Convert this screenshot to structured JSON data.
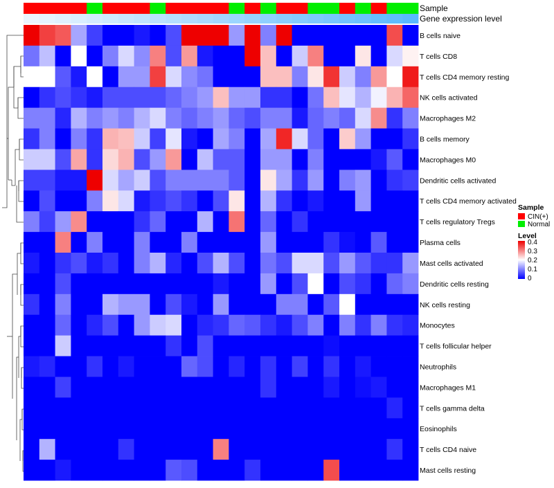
{
  "chart_data": {
    "type": "heatmap",
    "annotation_titles": {
      "sample": "Sample",
      "expression": "Gene expression level"
    },
    "sample_groups": [
      "CIN(+)",
      "CIN(+)",
      "CIN(+)",
      "CIN(+)",
      "Normal",
      "CIN(+)",
      "CIN(+)",
      "CIN(+)",
      "Normal",
      "CIN(+)",
      "CIN(+)",
      "CIN(+)",
      "CIN(+)",
      "Normal",
      "CIN(+)",
      "Normal",
      "CIN(+)",
      "CIN(+)",
      "Normal",
      "Normal",
      "CIN(+)",
      "Normal",
      "CIN(+)",
      "Normal",
      "Normal"
    ],
    "rows": [
      "B cells naive",
      "T cells CD8",
      "T cells CD4 memory resting",
      "NK cells activated",
      "Macrophages M2",
      "B cells memory",
      "Macrophages M0",
      "Dendritic cells activated",
      "T cells CD4 memory activated",
      "T cells regulatory  Tregs",
      "Plasma cells",
      "Mast cells activated",
      "Dendritic cells resting",
      "NK cells resting",
      "Monocytes",
      "T cells follicular helper",
      "Neutrophils",
      "Macrophages M1",
      "T cells gamma delta",
      "Eosinophils",
      "T cells CD4 naive",
      "Mast cells resting"
    ],
    "values": [
      [
        0.4,
        0.35,
        0.33,
        0.13,
        0.05,
        0,
        0,
        0.02,
        0,
        0.06,
        0.4,
        0.4,
        0.4,
        0.12,
        0.4,
        0.1,
        0.4,
        0,
        0,
        0,
        0,
        0,
        0,
        0.34,
        0
      ],
      [
        0.09,
        0.15,
        0,
        0.2,
        0,
        0.1,
        0.17,
        0.11,
        0.3,
        0.06,
        0.28,
        0.02,
        0,
        0,
        0.4,
        0.25,
        0,
        0.16,
        0.3,
        0,
        0,
        0.22,
        0,
        0.17,
        0.21
      ],
      [
        0.2,
        0.2,
        0.07,
        0.02,
        0.2,
        0,
        0.12,
        0.12,
        0.35,
        0.17,
        0.11,
        0.09,
        0,
        0,
        0,
        0.25,
        0.25,
        0.1,
        0.22,
        0.36,
        0.16,
        0.1,
        0.28,
        0.2,
        0.38
      ],
      [
        0,
        0.04,
        0.06,
        0.04,
        0.02,
        0.06,
        0.06,
        0.06,
        0.06,
        0.08,
        0.1,
        0.12,
        0.25,
        0.12,
        0.12,
        0.04,
        0.04,
        0,
        0.09,
        0.25,
        0.18,
        0.14,
        0.19,
        0.26,
        0.32
      ],
      [
        0.1,
        0.1,
        0.03,
        0.14,
        0.1,
        0.12,
        0.1,
        0.14,
        0.17,
        0.1,
        0.08,
        0.1,
        0.12,
        0.08,
        0.06,
        0.1,
        0.1,
        0.02,
        0.08,
        0.1,
        0.08,
        0.17,
        0.29,
        0.04,
        0.1
      ],
      [
        0.04,
        0.1,
        0,
        0.1,
        0.04,
        0.26,
        0.25,
        0.16,
        0.05,
        0.18,
        0.02,
        0,
        0.13,
        0.1,
        0,
        0.13,
        0.37,
        0.17,
        0.08,
        0,
        0.24,
        0.12,
        0,
        0,
        0.04
      ],
      [
        0.16,
        0.16,
        0.06,
        0.27,
        0.04,
        0.23,
        0.26,
        0.06,
        0.12,
        0.28,
        0,
        0.15,
        0.07,
        0.07,
        0,
        0.12,
        0.12,
        0,
        0.1,
        0,
        0,
        0,
        0.02,
        0.07,
        0
      ],
      [
        0.05,
        0.05,
        0.02,
        0.02,
        0.4,
        0.17,
        0.13,
        0.16,
        0.06,
        0.1,
        0.1,
        0.1,
        0.1,
        0.07,
        0,
        0.22,
        0.13,
        0.04,
        0.12,
        0,
        0.1,
        0.12,
        0,
        0.04,
        0.05
      ],
      [
        0,
        0.06,
        0,
        0,
        0.1,
        0.22,
        0.17,
        0.02,
        0.04,
        0.06,
        0.04,
        0,
        0.06,
        0.22,
        0,
        0.14,
        0.04,
        0,
        0.02,
        0,
        0,
        0.12,
        0,
        0,
        0
      ],
      [
        0.1,
        0.05,
        0.12,
        0.29,
        0,
        0,
        0,
        0.04,
        0.08,
        0,
        0,
        0.14,
        0,
        0.31,
        0,
        0.08,
        0,
        0.04,
        0,
        0,
        0,
        0,
        0,
        0,
        0
      ],
      [
        0,
        0,
        0.3,
        0,
        0.1,
        0,
        0,
        0.1,
        0,
        0,
        0.1,
        0,
        0,
        0,
        0,
        0.12,
        0,
        0,
        0,
        0.04,
        0.01,
        0,
        0.07,
        0,
        0
      ],
      [
        0.02,
        0,
        0.04,
        0.06,
        0.02,
        0.04,
        0,
        0.1,
        0.14,
        0.03,
        0,
        0.06,
        0.14,
        0.06,
        0,
        0.09,
        0.06,
        0.17,
        0.17,
        0.06,
        0.12,
        0.07,
        0.04,
        0.04,
        0.12
      ],
      [
        0,
        0,
        0.06,
        0,
        0,
        0,
        0,
        0,
        0,
        0,
        0,
        0,
        0.02,
        0,
        0,
        0.12,
        0,
        0.06,
        0.2,
        0,
        0.06,
        0.04,
        0,
        0.08,
        0.1
      ],
      [
        0.04,
        0,
        0.1,
        0,
        0,
        0.14,
        0.12,
        0.12,
        0,
        0.06,
        0.02,
        0,
        0.12,
        0,
        0,
        0,
        0.1,
        0.1,
        0,
        0.07,
        0.2,
        0,
        0,
        0,
        0
      ],
      [
        0,
        0,
        0.08,
        0,
        0.03,
        0.06,
        0,
        0.12,
        0.16,
        0.17,
        0,
        0.03,
        0.04,
        0.08,
        0.07,
        0.04,
        0.02,
        0.06,
        0.1,
        0,
        0.1,
        0.04,
        0.1,
        0.04,
        0.03
      ],
      [
        0,
        0,
        0.16,
        0,
        0,
        0,
        0,
        0,
        0,
        0.04,
        0,
        0.06,
        0,
        0,
        0,
        0,
        0,
        0,
        0,
        0.01,
        0,
        0,
        0,
        0,
        0
      ],
      [
        0.02,
        0.03,
        0,
        0,
        0.04,
        0,
        0.02,
        0,
        0,
        0,
        0.08,
        0.06,
        0,
        0.03,
        0,
        0.04,
        0,
        0.05,
        0,
        0.04,
        0,
        0.02,
        0,
        0,
        0
      ],
      [
        0,
        0,
        0.05,
        0,
        0,
        0,
        0,
        0,
        0,
        0,
        0,
        0,
        0,
        0,
        0,
        0.04,
        0,
        0,
        0,
        0.02,
        0,
        0.01,
        0.02,
        0,
        0
      ],
      [
        0,
        0,
        0,
        0,
        0,
        0,
        0,
        0,
        0,
        0,
        0,
        0,
        0,
        0,
        0,
        0,
        0,
        0,
        0,
        0,
        0,
        0,
        0,
        0.03,
        0
      ],
      [
        0,
        0,
        0,
        0,
        0,
        0,
        0,
        0,
        0,
        0,
        0,
        0,
        0,
        0,
        0,
        0,
        0,
        0,
        0,
        0,
        0,
        0,
        0,
        0,
        0
      ],
      [
        0,
        0.14,
        0,
        0,
        0,
        0,
        0.04,
        0,
        0,
        0,
        0,
        0,
        0.3,
        0,
        0,
        0,
        0,
        0,
        0,
        0,
        0,
        0,
        0,
        0.04,
        0
      ],
      [
        0,
        0,
        0.02,
        0,
        0,
        0,
        0,
        0,
        0,
        0.07,
        0.06,
        0,
        0,
        0,
        0.04,
        0,
        0,
        0,
        0,
        0.34,
        0,
        0,
        0,
        0,
        0
      ]
    ],
    "legend_sample": {
      "title": "Sample",
      "items": [
        "CIN(+)",
        "Normal"
      ],
      "colors": [
        "#ff0000",
        "#00ee00"
      ]
    },
    "legend_level": {
      "title": "Level",
      "ticks": [
        "0.4",
        "0.3",
        "0.2",
        "0.1",
        "0"
      ],
      "min": 0,
      "max": 0.4
    },
    "colors": {
      "low": "#0000ff",
      "mid": "#ffffff",
      "high": "#ee0000"
    }
  }
}
